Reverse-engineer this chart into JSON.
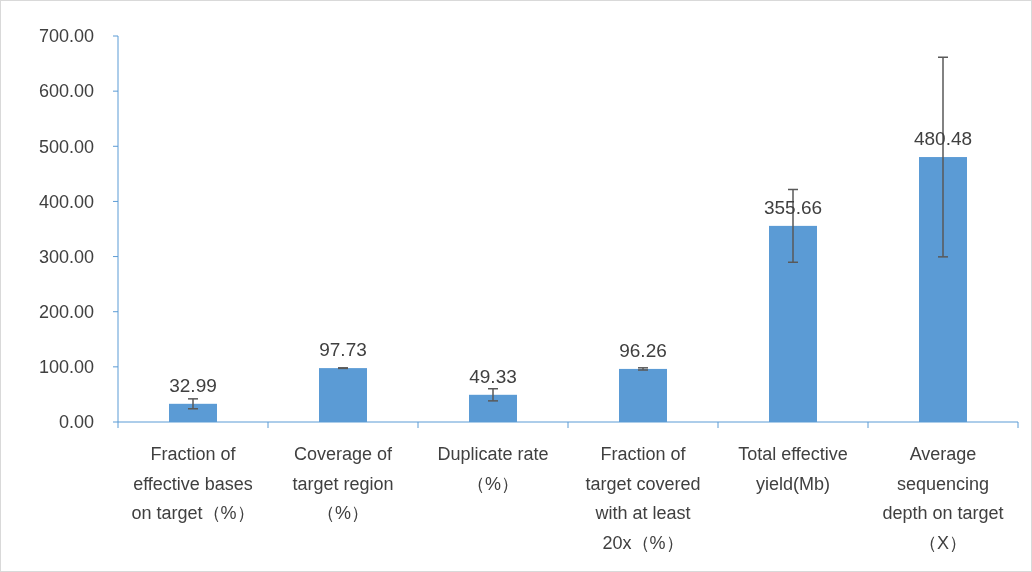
{
  "chart_data": {
    "type": "bar",
    "categories": [
      "Fraction of effective bases on target（%）",
      "Coverage of target region（%）",
      "Duplicate rate（%）",
      "Fraction of target covered with at least 20x（%）",
      "Total effective yield(Mb)",
      "Average sequencing depth on target（X）"
    ],
    "values": [
      32.99,
      97.73,
      49.33,
      96.26,
      355.66,
      480.48
    ],
    "errors": [
      9,
      0.5,
      11,
      2,
      66,
      181
    ],
    "color": "#5b9bd5",
    "ylim": [
      0,
      700
    ],
    "yticks": [
      {
        "value": 0,
        "label": "0.00"
      },
      {
        "value": 100,
        "label": "100.00"
      },
      {
        "value": 200,
        "label": "200.00"
      },
      {
        "value": 300,
        "label": "300.00"
      },
      {
        "value": 400,
        "label": "400.00"
      },
      {
        "value": 500,
        "label": "500.00"
      },
      {
        "value": 600,
        "label": "600.00"
      },
      {
        "value": 700,
        "label": "700.00"
      }
    ],
    "data_labels": true,
    "grid": false
  }
}
